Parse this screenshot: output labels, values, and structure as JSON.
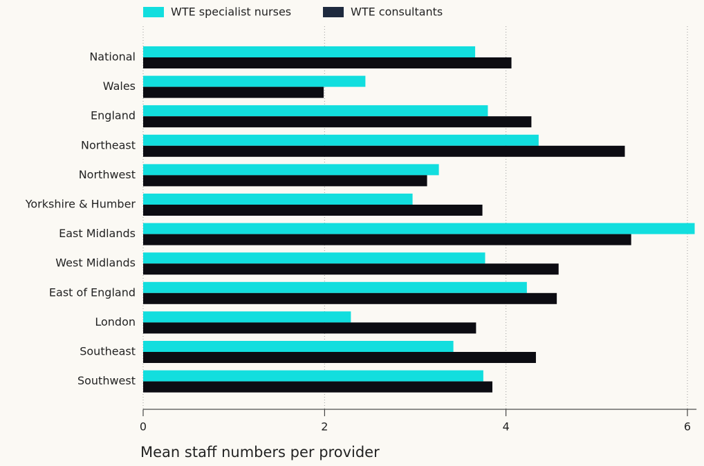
{
  "chart_data": {
    "type": "barh",
    "xlabel": "Mean staff numbers per provider",
    "categories": [
      "National",
      "Wales",
      "England",
      "Northeast",
      "Northwest",
      "Yorkshire & Humber",
      "East Midlands",
      "West Midlands",
      "East of England",
      "London",
      "Southeast",
      "Southwest"
    ],
    "series": [
      {
        "name": "WTE specialist nurses",
        "color": "#12dede",
        "values": [
          3.66,
          2.45,
          3.8,
          4.36,
          3.26,
          2.97,
          6.08,
          3.77,
          4.23,
          2.29,
          3.42,
          3.75
        ]
      },
      {
        "name": "WTE consultants",
        "color": "#0c0c12",
        "values": [
          4.06,
          1.99,
          4.28,
          5.31,
          3.13,
          3.74,
          5.38,
          4.58,
          4.56,
          3.67,
          4.33,
          3.85
        ]
      }
    ],
    "xlim": [
      0,
      6.1
    ],
    "xticks": [
      0,
      2,
      4,
      6
    ],
    "grid": true
  }
}
